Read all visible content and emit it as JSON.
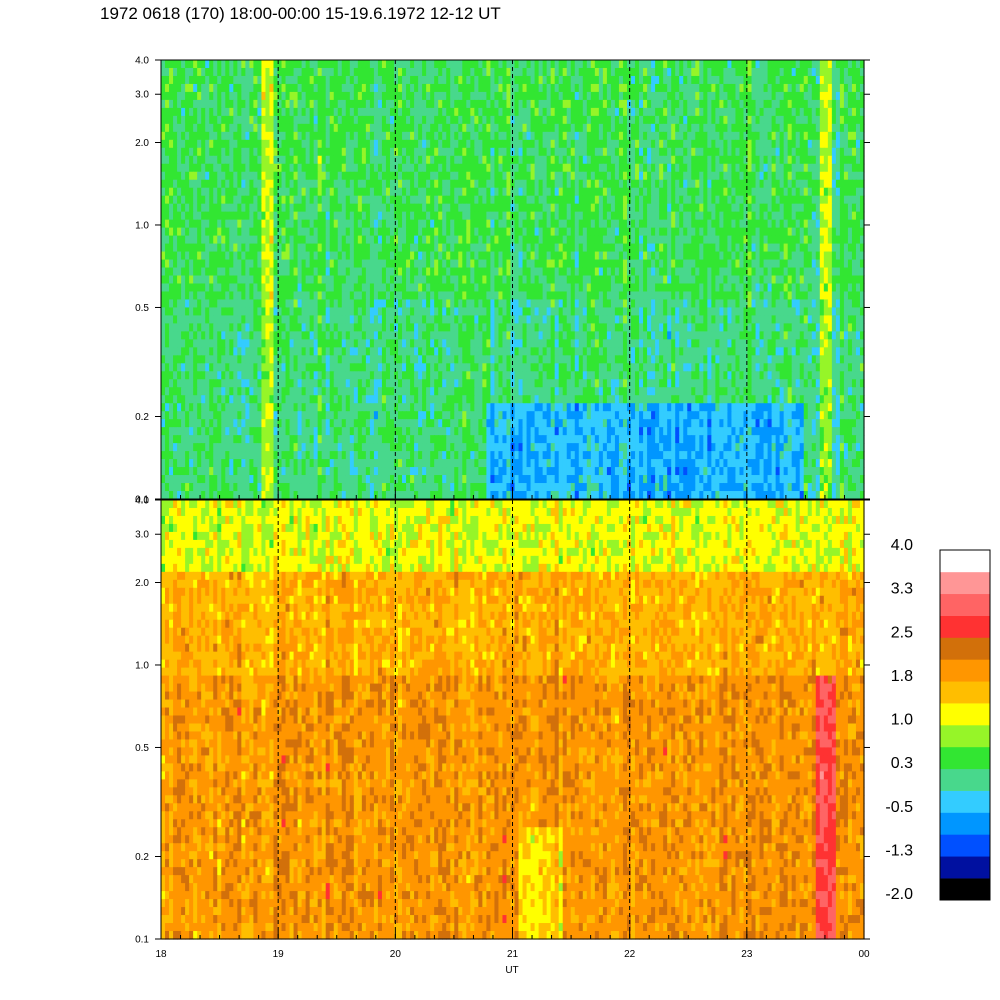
{
  "title": "1972 0618 (170) 18:00-00:00 15-19.6.1972  12-12 UT",
  "chart_data": {
    "type": "heatmap",
    "xlabel": "UT",
    "x_tick_labels": [
      "18",
      "19",
      "20",
      "21",
      "22",
      "23",
      "00"
    ],
    "x_range_hours": [
      18,
      24
    ],
    "dashed_hour_lines": [
      19,
      20,
      21,
      22,
      23
    ],
    "y_scale": "log",
    "y_range": [
      0.1,
      4.0
    ],
    "y_tick_labels": [
      "0.1",
      "0.2",
      "0.5",
      "1.0",
      "2.0",
      "3.0",
      "4.0"
    ],
    "panels": [
      {
        "name": "upper",
        "dominant_color_class": "green/blue",
        "typical_level": 0.2
      },
      {
        "name": "lower",
        "dominant_color_class": "orange/yellow",
        "typical_level": 1.7
      }
    ],
    "colorbar": {
      "tick_labels": [
        "4.0",
        "3.3",
        "2.5",
        "1.8",
        "1.0",
        "0.3",
        "-0.5",
        "-1.3",
        "-2.0"
      ],
      "colors": [
        "#000000",
        "#0010a0",
        "#0050ff",
        "#0096ff",
        "#33ccff",
        "#48d88c",
        "#32e632",
        "#96f528",
        "#ffff00",
        "#ffbe00",
        "#ff9600",
        "#d2700a",
        "#ff3232",
        "#ff6464",
        "#ff9696",
        "#ffffff"
      ]
    }
  }
}
